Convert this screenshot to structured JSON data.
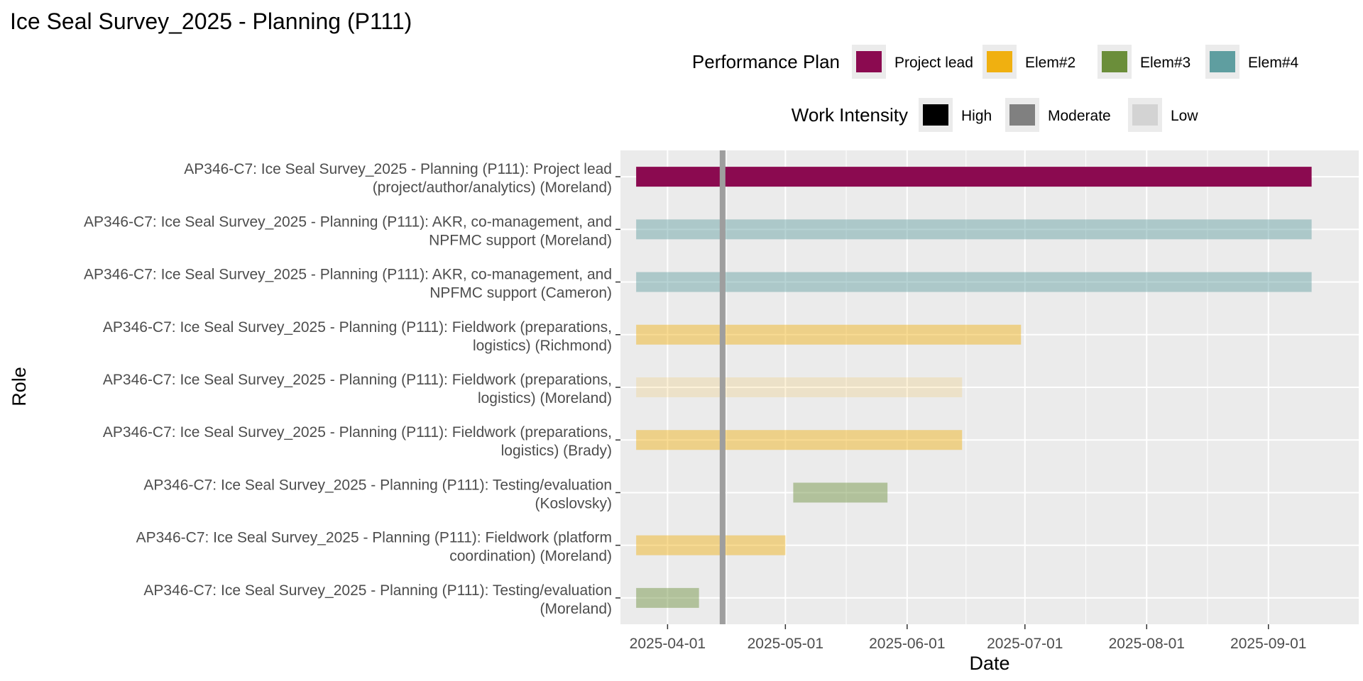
{
  "chart_data": {
    "type": "gantt",
    "title": "Ice Seal Survey_2025 - Planning (P111)",
    "xlabel": "Date",
    "ylabel": "Role",
    "x_axis": {
      "type": "date",
      "range": [
        "2025-03-20",
        "2025-09-24"
      ],
      "ticks": [
        "2025-04-01",
        "2025-05-01",
        "2025-06-01",
        "2025-07-01",
        "2025-08-01",
        "2025-09-01"
      ]
    },
    "reference_line": {
      "date": "2025-04-15",
      "color": "#9e9e9e"
    },
    "legend": {
      "position": "top-right",
      "groups": [
        {
          "title": "Performance Plan",
          "entries": [
            {
              "label": "Project lead",
              "color": "#8b0a50"
            },
            {
              "label": "Elem#2",
              "color": "#f0b010"
            },
            {
              "label": "Elem#3",
              "color": "#6b8e3a"
            },
            {
              "label": "Elem#4",
              "color": "#5f9ea0"
            }
          ]
        },
        {
          "title": "Work Intensity",
          "entries": [
            {
              "label": "High",
              "color": "#000000"
            },
            {
              "label": "Moderate",
              "color": "#808080"
            },
            {
              "label": "Low",
              "color": "#d3d3d3"
            }
          ]
        }
      ]
    },
    "rows": [
      {
        "label": [
          "AP346-C7: Ice Seal Survey_2025 - Planning (P111): Testing/evaluation",
          "(Moreland)"
        ],
        "start": "2025-03-24",
        "end": "2025-04-09",
        "plan": "Elem#3",
        "intensity": "Moderate"
      },
      {
        "label": [
          "AP346-C7: Ice Seal Survey_2025 - Planning (P111): Fieldwork (platform",
          "coordination) (Moreland)"
        ],
        "start": "2025-03-24",
        "end": "2025-05-01",
        "plan": "Elem#2",
        "intensity": "Moderate"
      },
      {
        "label": [
          "AP346-C7: Ice Seal Survey_2025 - Planning (P111): Testing/evaluation",
          "(Koslovsky)"
        ],
        "start": "2025-05-03",
        "end": "2025-05-27",
        "plan": "Elem#3",
        "intensity": "Moderate"
      },
      {
        "label": [
          "AP346-C7: Ice Seal Survey_2025 - Planning (P111): Fieldwork (preparations,",
          "logistics) (Brady)"
        ],
        "start": "2025-03-24",
        "end": "2025-06-15",
        "plan": "Elem#2",
        "intensity": "Moderate"
      },
      {
        "label": [
          "AP346-C7: Ice Seal Survey_2025 - Planning (P111): Fieldwork (preparations,",
          "logistics) (Moreland)"
        ],
        "start": "2025-03-24",
        "end": "2025-06-15",
        "plan": "Elem#2",
        "intensity": "Low"
      },
      {
        "label": [
          "AP346-C7: Ice Seal Survey_2025 - Planning (P111): Fieldwork (preparations,",
          "logistics) (Richmond)"
        ],
        "start": "2025-03-24",
        "end": "2025-06-30",
        "plan": "Elem#2",
        "intensity": "Moderate"
      },
      {
        "label": [
          "AP346-C7: Ice Seal Survey_2025 - Planning (P111): AKR, co-management, and",
          "NPFMC support (Cameron)"
        ],
        "start": "2025-03-24",
        "end": "2025-09-12",
        "plan": "Elem#4",
        "intensity": "Moderate"
      },
      {
        "label": [
          "AP346-C7: Ice Seal Survey_2025 - Planning (P111): AKR, co-management, and",
          "NPFMC support (Moreland)"
        ],
        "start": "2025-03-24",
        "end": "2025-09-12",
        "plan": "Elem#4",
        "intensity": "Moderate"
      },
      {
        "label": [
          "AP346-C7: Ice Seal Survey_2025 - Planning (P111): Project lead",
          "(project/author/analytics) (Moreland)"
        ],
        "start": "2025-03-24",
        "end": "2025-09-12",
        "plan": "Project lead",
        "intensity": "High"
      }
    ]
  }
}
